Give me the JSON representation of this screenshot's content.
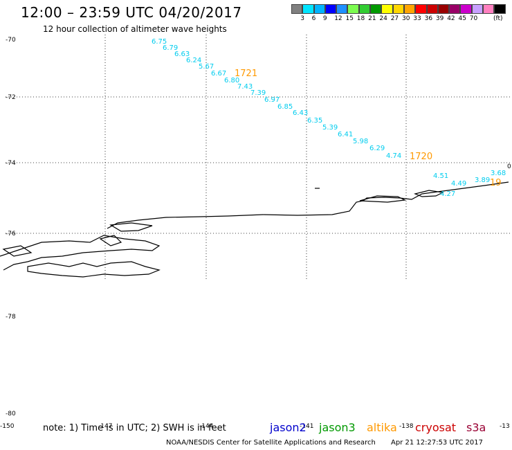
{
  "title": "12:00 – 23:59 UTC 04/20/2017",
  "subtitle": "12 hour collection of altimeter wave heights",
  "colorbar": {
    "unit": "(ft)",
    "colors": [
      "#808080",
      "#00e5ff",
      "#00b4ff",
      "#0000ff",
      "#1e90ff",
      "#7cfc50",
      "#32cd32",
      "#009900",
      "#ffff00",
      "#ffd700",
      "#ffa500",
      "#ff0000",
      "#cc0000",
      "#990000",
      "#990066",
      "#cc00cc",
      "#c8a0ff",
      "#ff80c0",
      "#000000"
    ],
    "labels": [
      "3",
      "6",
      "9",
      "12",
      "15",
      "18",
      "21",
      "24",
      "27",
      "30",
      "33",
      "36",
      "39",
      "42",
      "45",
      "70"
    ]
  },
  "map": {
    "lat_labels": [
      "-70",
      "-72",
      "-74",
      "-76",
      "-78",
      "-80"
    ],
    "lon_labels": [
      "-150",
      "-147",
      "-144",
      "-141",
      "-138",
      "-13"
    ],
    "corner_label": "0"
  },
  "tracks": {
    "altika_color": "#ff9900",
    "cyan_color": "#00ccee",
    "track1_values": [
      "6.75",
      "6.79",
      "6.63",
      "6.24",
      "5.67",
      "6.67",
      "6.80",
      "7.43",
      "7.39",
      "6.97",
      "6.85",
      "6.43",
      "6.35",
      "5.39",
      "6.41",
      "5.98",
      "6.29",
      "4.74"
    ],
    "track1_label": "1721",
    "track2_label": "1720",
    "track3_values": [
      "4.51",
      "4.49",
      "3.89",
      "3.68",
      "4.27"
    ],
    "track3_label": "19"
  },
  "footer": {
    "note": "note: 1) Time is in UTC; 2) SWH is in feet",
    "satellites": [
      {
        "name": "jason2",
        "color": "#0000cc"
      },
      {
        "name": "jason3",
        "color": "#009900"
      },
      {
        "name": "altika",
        "color": "#ff9900"
      },
      {
        "name": "cryosat",
        "color": "#cc0000"
      },
      {
        "name": "s3a",
        "color": "#990033"
      }
    ],
    "credit": "NOAA/NESDIS Center for Satellite Applications and Research",
    "timestamp": "Apr 21 12:27:53 UTC 2017"
  }
}
